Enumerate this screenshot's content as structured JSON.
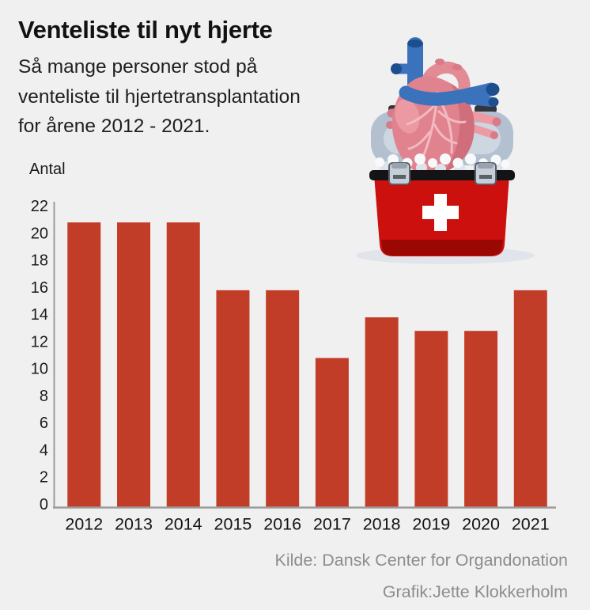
{
  "page": {
    "background": "#f1f0f1"
  },
  "header": {
    "title": "Venteliste til nyt hjerte",
    "subtitle": "Så mange personer stod på\nventeliste til hjertetransplantation\nfor årene 2012 - 2021."
  },
  "chart_data": {
    "type": "bar",
    "title": "Venteliste til nyt hjerte",
    "ylabel": "Antal",
    "xlabel": "",
    "categories": [
      "2012",
      "2013",
      "2014",
      "2015",
      "2016",
      "2017",
      "2018",
      "2019",
      "2020",
      "2021"
    ],
    "values": [
      21,
      21,
      21,
      16,
      16,
      11,
      14,
      13,
      13,
      16
    ],
    "ylim": [
      0,
      22
    ],
    "ytick_step": 2,
    "grid": false,
    "legend": "none",
    "bar_color": "#c23d28",
    "axis_color": "#9c9c9c",
    "tick_text_color": "#1b1b1b"
  },
  "footer": {
    "source": "Kilde: Dansk Center for Organdonation",
    "credit": "Grafik:Jette Klokkerholm"
  },
  "illustration": {
    "name": "heart-in-organ-cooler",
    "colors": {
      "shadow": "#e2e4ec",
      "lid": "#b3c0d0",
      "lid_inner": "#cdd7e1",
      "handle_dark": "#33363c",
      "ice": "#f7f9fb",
      "ice_shadow": "#dde3ea",
      "cooler_red": "#cb100d",
      "cooler_red_dark": "#9b0703",
      "band_black": "#141417",
      "clasp": "#c6ced7",
      "clasp_dark": "#596069",
      "clasp_lip": "#9aa3ad",
      "cross_white": "#ffffff",
      "heart_pink": "#e0838e",
      "heart_dark": "#d06e7b",
      "heart_light": "#eb9aa4",
      "vein": "#f3bcc3",
      "artery_pink": "#e28b95",
      "vessel_blue": "#3a72bb",
      "vessel_blue_dark": "#1d4e8d",
      "tube_pink": "#ef9aa3",
      "tube_pink_dark": "#d97a87"
    }
  }
}
